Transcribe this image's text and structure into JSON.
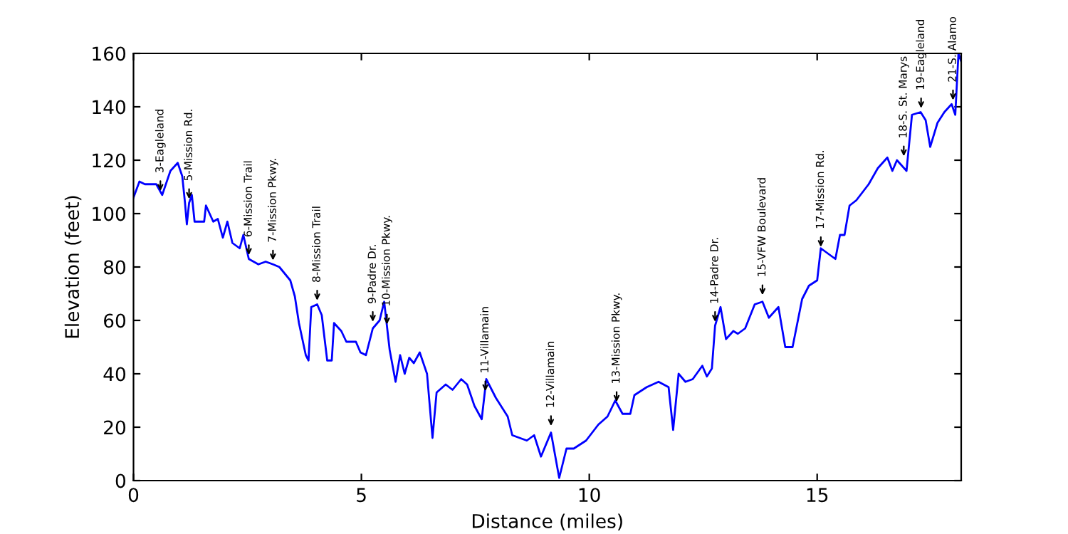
{
  "chart_data": {
    "type": "line",
    "xlabel": "Distance (miles)",
    "ylabel": "Elevation (feet)",
    "xlim": [
      0,
      18.16
    ],
    "ylim": [
      0,
      160
    ],
    "xticks": [
      0,
      5,
      10,
      15
    ],
    "yticks": [
      0,
      20,
      40,
      60,
      80,
      100,
      120,
      140,
      160
    ],
    "grid": false,
    "legend": false,
    "marker": "none",
    "line_style": "solid",
    "series": [
      {
        "color": "#0000ff",
        "x": [
          0,
          0.13,
          0.25,
          0.5,
          0.63,
          0.81,
          0.97,
          1.07,
          1.13,
          1.17,
          1.22,
          1.28,
          1.34,
          1.55,
          1.59,
          1.75,
          1.85,
          1.96,
          2.06,
          2.17,
          2.33,
          2.41,
          2.53,
          2.74,
          2.9,
          3.06,
          3.2,
          3.44,
          3.54,
          3.63,
          3.78,
          3.84,
          3.9,
          4.03,
          4.13,
          4.25,
          4.35,
          4.4,
          4.56,
          4.67,
          4.88,
          4.98,
          5.1,
          5.25,
          5.4,
          5.5,
          5.62,
          5.75,
          5.85,
          5.95,
          6.05,
          6.15,
          6.28,
          6.44,
          6.56,
          6.65,
          6.85,
          7.0,
          7.19,
          7.32,
          7.48,
          7.64,
          7.74,
          7.95,
          8.21,
          8.31,
          8.63,
          8.79,
          8.94,
          9.16,
          9.34,
          9.5,
          9.66,
          9.93,
          10.2,
          10.4,
          10.57,
          10.73,
          10.9,
          10.99,
          11.26,
          11.52,
          11.74,
          11.84,
          11.96,
          12.11,
          12.27,
          12.48,
          12.58,
          12.69,
          12.76,
          12.88,
          13.0,
          13.16,
          13.26,
          13.42,
          13.63,
          13.8,
          13.94,
          14.15,
          14.3,
          14.46,
          14.67,
          14.82,
          15.0,
          15.08,
          15.4,
          15.5,
          15.6,
          15.71,
          15.86,
          16.13,
          16.33,
          16.54,
          16.65,
          16.75,
          16.96,
          17.08,
          17.27,
          17.38,
          17.48,
          17.64,
          17.79,
          17.95,
          18.03,
          18.1,
          18.16
        ],
        "values": [
          106,
          112,
          111,
          111,
          107,
          116,
          119,
          114,
          104,
          96,
          104,
          107,
          97,
          97,
          103,
          97,
          98,
          91,
          97,
          89,
          87,
          92,
          83,
          81,
          82,
          81,
          80,
          75,
          69,
          59,
          47,
          45,
          65,
          66,
          62,
          45,
          45,
          59,
          56,
          52,
          52,
          48,
          47,
          57,
          60,
          67,
          49,
          37,
          47,
          40,
          46,
          44,
          48,
          40,
          16,
          33,
          36,
          34,
          38,
          36,
          28,
          23,
          38,
          31,
          24,
          17,
          15,
          17,
          9,
          18,
          1,
          12,
          12,
          15,
          21,
          24,
          30,
          25,
          25,
          32,
          35,
          37,
          35,
          19,
          40,
          37,
          38,
          43,
          39,
          42,
          58,
          65,
          53,
          56,
          55,
          57,
          66,
          67,
          61,
          65,
          50,
          50,
          68,
          73,
          75,
          87,
          83,
          92,
          92,
          103,
          105,
          111,
          117,
          121,
          116,
          120,
          116,
          137,
          138,
          135,
          125,
          134,
          138,
          141,
          137,
          160,
          157
        ]
      }
    ],
    "annotations": [
      {
        "text": "3-Eagleland",
        "x": 0.59,
        "y": 107
      },
      {
        "text": "5-Mission Rd.",
        "x": 1.22,
        "y": 104
      },
      {
        "text": "6-Mission Trail",
        "x": 2.53,
        "y": 83
      },
      {
        "text": "7-Mission Pkwy.",
        "x": 3.06,
        "y": 81
      },
      {
        "text": "8-Mission Trail",
        "x": 4.03,
        "y": 66
      },
      {
        "text": "9-Padre Dr.",
        "x": 5.25,
        "y": 58
      },
      {
        "text": "10-Mission Pkwy.",
        "x": 5.56,
        "y": 57
      },
      {
        "text": "11-Villamain",
        "x": 7.72,
        "y": 32
      },
      {
        "text": "12-Villamain",
        "x": 9.16,
        "y": 19
      },
      {
        "text": "13-Mission Pkwy.",
        "x": 10.6,
        "y": 28
      },
      {
        "text": "14-Padre Dr.",
        "x": 12.76,
        "y": 58
      },
      {
        "text": "15-VFW Boulevard",
        "x": 13.8,
        "y": 68
      },
      {
        "text": "17-Mission Rd.",
        "x": 15.08,
        "y": 86
      },
      {
        "text": "18-S. St. Marys",
        "x": 16.9,
        "y": 120
      },
      {
        "text": "19-Eagleland",
        "x": 17.28,
        "y": 138
      },
      {
        "text": "21-S. Alamo",
        "x": 17.98,
        "y": 141
      }
    ]
  }
}
